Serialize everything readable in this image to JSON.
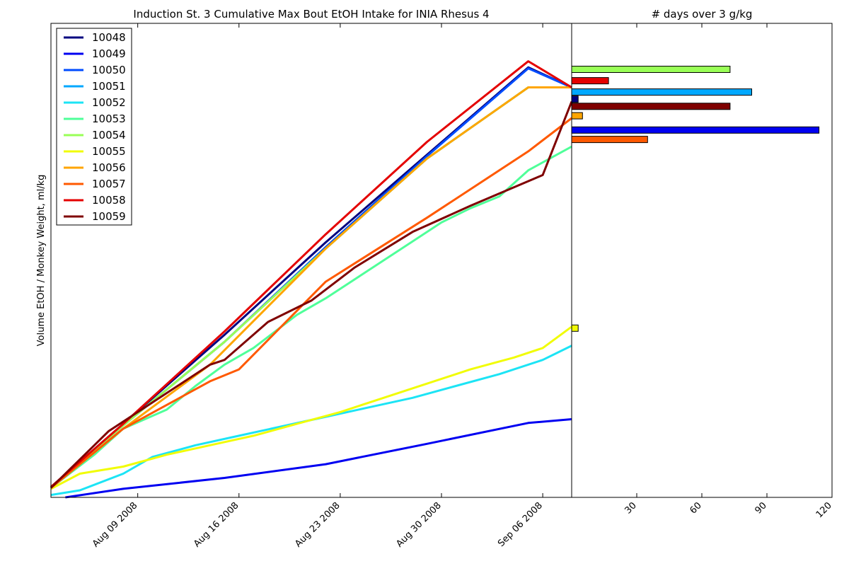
{
  "chart_data": [
    {
      "type": "line",
      "title": "Induction St. 3 Cumulative Max Bout EtOH Intake for INIA Rhesus 4",
      "xlabel": "",
      "ylabel": "Volume EtOH / Monkey Weight, ml/kg",
      "x_tick_labels": [
        "Aug 09 2008",
        "Aug 16 2008",
        "Aug 23 2008",
        "Aug 30 2008",
        "Sep 06 2008"
      ],
      "x_ticks": [
        "2008-08-09",
        "2008-08-16",
        "2008-08-23",
        "2008-08-30",
        "2008-09-06"
      ],
      "xlim": [
        "2008-08-03",
        "2008-09-08"
      ],
      "ylim": [
        0,
        100
      ],
      "legend_loc": "upper left",
      "grid": false,
      "series": [
        {
          "name": "10048",
          "color": "#00007f",
          "x": [
            "2008-08-03",
            "2008-08-08",
            "2008-08-15",
            "2008-08-22",
            "2008-08-29",
            "2008-09-05",
            "2008-09-08"
          ],
          "y": [
            2.2,
            15.5,
            34.3,
            53.8,
            72.3,
            90.7,
            86.5
          ]
        },
        {
          "name": "10049",
          "color": "#0000f1",
          "x": [
            "2008-08-04",
            "2008-08-08",
            "2008-08-15",
            "2008-08-22",
            "2008-08-29",
            "2008-09-05",
            "2008-09-08"
          ],
          "y": [
            0.0,
            1.8,
            4.1,
            7.0,
            11.3,
            15.7,
            16.5
          ]
        },
        {
          "name": "10050",
          "color": "#004cff",
          "x": [
            "2008-08-03",
            "2008-08-08",
            "2008-08-15",
            "2008-08-22",
            "2008-08-29",
            "2008-09-05",
            "2008-09-08"
          ],
          "y": [
            2.2,
            15.2,
            32.8,
            52.8,
            72.0,
            90.5,
            86.5
          ]
        },
        {
          "name": "10051",
          "color": "#00a8ff",
          "x": [
            "2008-08-03",
            "2008-08-08",
            "2008-08-15",
            "2008-08-22",
            "2008-08-29",
            "2008-09-05",
            "2008-09-08"
          ],
          "y": [
            2.2,
            15.2,
            32.8,
            52.5,
            71.5,
            86.5,
            86.5
          ]
        },
        {
          "name": "10052",
          "color": "#1ce4f5",
          "x": [
            "2008-08-03",
            "2008-08-05",
            "2008-08-08",
            "2008-08-10",
            "2008-08-13",
            "2008-08-16",
            "2008-08-19",
            "2008-08-22",
            "2008-08-25",
            "2008-08-28",
            "2008-08-31",
            "2008-09-03",
            "2008-09-06",
            "2008-09-08"
          ],
          "y": [
            0.5,
            1.5,
            5.0,
            8.5,
            11.0,
            13.0,
            15.0,
            17.0,
            19.0,
            21.0,
            23.5,
            26.0,
            29.0,
            32.0
          ]
        },
        {
          "name": "10053",
          "color": "#4fff99",
          "x": [
            "2008-08-03",
            "2008-08-06",
            "2008-08-08",
            "2008-08-11",
            "2008-08-13",
            "2008-08-15",
            "2008-08-17",
            "2008-08-20",
            "2008-08-22",
            "2008-08-25",
            "2008-08-28",
            "2008-08-30",
            "2008-09-01",
            "2008-09-03",
            "2008-09-05",
            "2008-09-08"
          ],
          "y": [
            2.0,
            9.0,
            14.5,
            18.5,
            23.5,
            28.0,
            31.5,
            38.5,
            42.0,
            48.0,
            54.0,
            58.0,
            61.0,
            63.5,
            69.0,
            74.0
          ]
        },
        {
          "name": "10054",
          "color": "#99ff57",
          "x": [
            "2008-08-03",
            "2008-08-08",
            "2008-08-15",
            "2008-08-22",
            "2008-08-29",
            "2008-09-05",
            "2008-09-08"
          ],
          "y": [
            2.2,
            15.2,
            32.8,
            52.5,
            71.5,
            86.5,
            86.5
          ]
        },
        {
          "name": "10055",
          "color": "#f1fc06",
          "x": [
            "2008-08-03",
            "2008-08-05",
            "2008-08-08",
            "2008-08-11",
            "2008-08-14",
            "2008-08-17",
            "2008-08-20",
            "2008-08-23",
            "2008-08-26",
            "2008-08-29",
            "2008-09-01",
            "2008-09-04",
            "2008-09-06",
            "2008-09-08"
          ],
          "y": [
            1.8,
            5.0,
            6.5,
            9.0,
            11.0,
            13.0,
            15.5,
            18.0,
            21.0,
            24.0,
            27.0,
            29.5,
            31.5,
            36.0
          ]
        },
        {
          "name": "10056",
          "color": "#ffa500",
          "x": [
            "2008-08-03",
            "2008-08-08",
            "2008-08-14",
            "2008-08-22",
            "2008-08-29",
            "2008-09-05",
            "2008-09-08"
          ],
          "y": [
            2.0,
            14.5,
            28.0,
            52.5,
            71.5,
            86.5,
            86.5
          ]
        },
        {
          "name": "10057",
          "color": "#ff5900",
          "x": [
            "2008-08-03",
            "2008-08-08",
            "2008-08-14",
            "2008-08-16",
            "2008-08-22",
            "2008-08-29",
            "2008-09-05",
            "2008-09-08"
          ],
          "y": [
            2.0,
            14.5,
            24.5,
            27.0,
            45.5,
            59.0,
            73.0,
            80.0
          ]
        },
        {
          "name": "10058",
          "color": "#e40000",
          "x": [
            "2008-08-03",
            "2008-08-08",
            "2008-08-15",
            "2008-08-22",
            "2008-08-29",
            "2008-09-05",
            "2008-09-08"
          ],
          "y": [
            2.2,
            15.5,
            35.0,
            55.5,
            75.0,
            92.0,
            86.5
          ]
        },
        {
          "name": "10059",
          "color": "#7f0000",
          "x": [
            "2008-08-03",
            "2008-08-07",
            "2008-08-14",
            "2008-08-15",
            "2008-08-18",
            "2008-08-21",
            "2008-08-24",
            "2008-08-28",
            "2008-09-01",
            "2008-09-06",
            "2008-09-08"
          ],
          "y": [
            2.0,
            14.0,
            28.0,
            29.0,
            37.0,
            41.5,
            48.5,
            56.0,
            61.5,
            68.0,
            83.5
          ]
        }
      ]
    },
    {
      "type": "bar",
      "orientation": "horizontal",
      "title": "# days over 3 g/kg",
      "xlabel": "",
      "ylabel": "",
      "x_tick_labels": [
        "30",
        "60",
        "90",
        "120"
      ],
      "x_ticks": [
        30,
        60,
        90,
        120
      ],
      "xlim": [
        0,
        120
      ],
      "ylim": [
        0,
        100
      ],
      "bars": [
        {
          "y": 90.3,
          "value": 73,
          "color": "#99ff57"
        },
        {
          "y": 87.9,
          "value": 17,
          "color": "#e40000"
        },
        {
          "y": 85.5,
          "value": 83,
          "color": "#00a8ff"
        },
        {
          "y": 84.0,
          "value": 3,
          "color": "#00007f"
        },
        {
          "y": 82.5,
          "value": 73,
          "color": "#7f0000"
        },
        {
          "y": 80.5,
          "value": 5,
          "color": "#ffa500"
        },
        {
          "y": 77.5,
          "value": 114,
          "color": "#0000f1"
        },
        {
          "y": 75.5,
          "value": 35,
          "color": "#ff5900"
        },
        {
          "y": 35.7,
          "value": 3,
          "color": "#f1fc06"
        }
      ]
    }
  ]
}
